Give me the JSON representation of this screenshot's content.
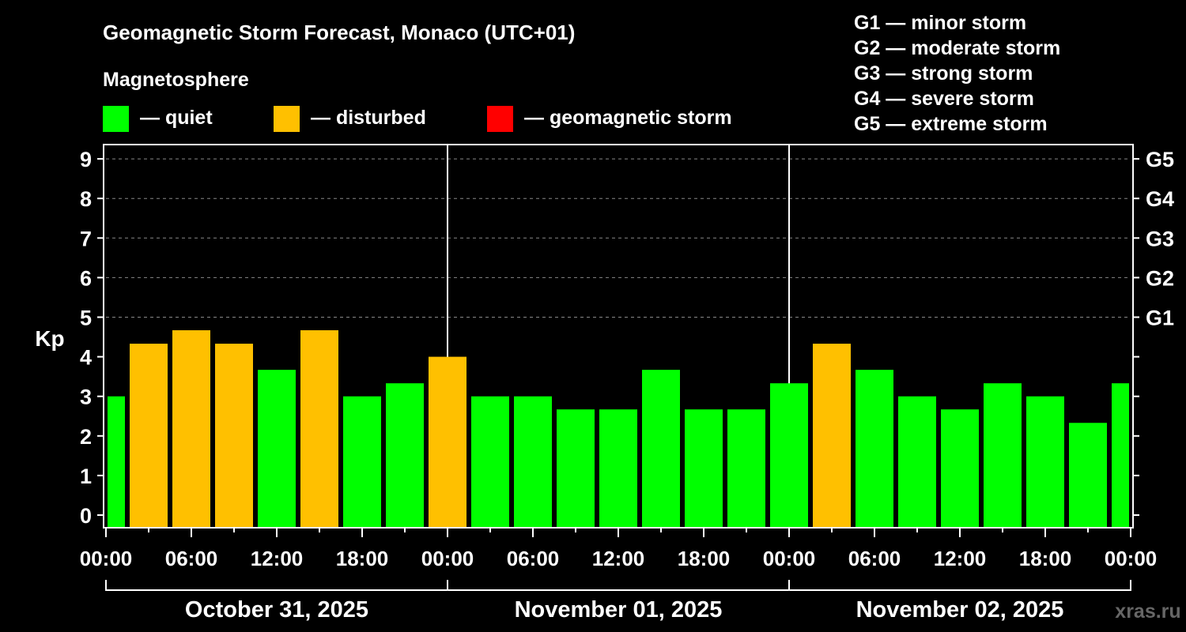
{
  "chart_data": {
    "type": "bar",
    "title": "Geomagnetic Storm Forecast, Monaco (UTC+01)",
    "ylabel": "Kp",
    "ylim": [
      0,
      9
    ],
    "yticks": [
      "0",
      "1",
      "2",
      "3",
      "4",
      "5",
      "6",
      "7",
      "8",
      "9"
    ],
    "right_ticks": [
      {
        "kp": 5,
        "label": "G1"
      },
      {
        "kp": 6,
        "label": "G2"
      },
      {
        "kp": 7,
        "label": "G3"
      },
      {
        "kp": 8,
        "label": "G4"
      },
      {
        "kp": 9,
        "label": "G5"
      }
    ],
    "grid": true,
    "legend_title": "Magnetosphere",
    "legend": [
      {
        "label": "— quiet",
        "color": "#00ff00"
      },
      {
        "label": "— disturbed",
        "color": "#ffc000"
      },
      {
        "label": "— geomagnetic storm",
        "color": "#ff0000"
      }
    ],
    "storm_scale": [
      "G1 — minor storm",
      "G2 — moderate storm",
      "G3 — strong storm",
      "G4 — severe storm",
      "G5 — extreme storm"
    ],
    "xtick_labels": [
      "00:00",
      "06:00",
      "12:00",
      "18:00",
      "00:00",
      "06:00",
      "12:00",
      "18:00",
      "00:00",
      "06:00",
      "12:00",
      "18:00",
      "00:00"
    ],
    "days": [
      "October 31, 2025",
      "November 01, 2025",
      "November 02, 2025"
    ],
    "bars": [
      {
        "hour": 0,
        "kp": 3.0,
        "level": "quiet"
      },
      {
        "hour": 3,
        "kp": 4.33,
        "level": "disturbed"
      },
      {
        "hour": 6,
        "kp": 4.67,
        "level": "disturbed"
      },
      {
        "hour": 9,
        "kp": 4.33,
        "level": "disturbed"
      },
      {
        "hour": 12,
        "kp": 3.67,
        "level": "quiet"
      },
      {
        "hour": 15,
        "kp": 4.67,
        "level": "disturbed"
      },
      {
        "hour": 18,
        "kp": 3.0,
        "level": "quiet"
      },
      {
        "hour": 21,
        "kp": 3.33,
        "level": "quiet"
      },
      {
        "hour": 24,
        "kp": 4.0,
        "level": "disturbed"
      },
      {
        "hour": 27,
        "kp": 3.0,
        "level": "quiet"
      },
      {
        "hour": 30,
        "kp": 3.0,
        "level": "quiet"
      },
      {
        "hour": 33,
        "kp": 2.67,
        "level": "quiet"
      },
      {
        "hour": 36,
        "kp": 2.67,
        "level": "quiet"
      },
      {
        "hour": 39,
        "kp": 3.67,
        "level": "quiet"
      },
      {
        "hour": 42,
        "kp": 2.67,
        "level": "quiet"
      },
      {
        "hour": 45,
        "kp": 2.67,
        "level": "quiet"
      },
      {
        "hour": 48,
        "kp": 3.33,
        "level": "quiet"
      },
      {
        "hour": 51,
        "kp": 4.33,
        "level": "disturbed"
      },
      {
        "hour": 54,
        "kp": 3.67,
        "level": "quiet"
      },
      {
        "hour": 57,
        "kp": 3.0,
        "level": "quiet"
      },
      {
        "hour": 60,
        "kp": 2.67,
        "level": "quiet"
      },
      {
        "hour": 63,
        "kp": 3.33,
        "level": "quiet"
      },
      {
        "hour": 66,
        "kp": 3.0,
        "level": "quiet"
      },
      {
        "hour": 69,
        "kp": 2.33,
        "level": "quiet"
      },
      {
        "hour": 72,
        "kp": 3.33,
        "level": "quiet"
      }
    ]
  },
  "watermark": "xras.ru"
}
